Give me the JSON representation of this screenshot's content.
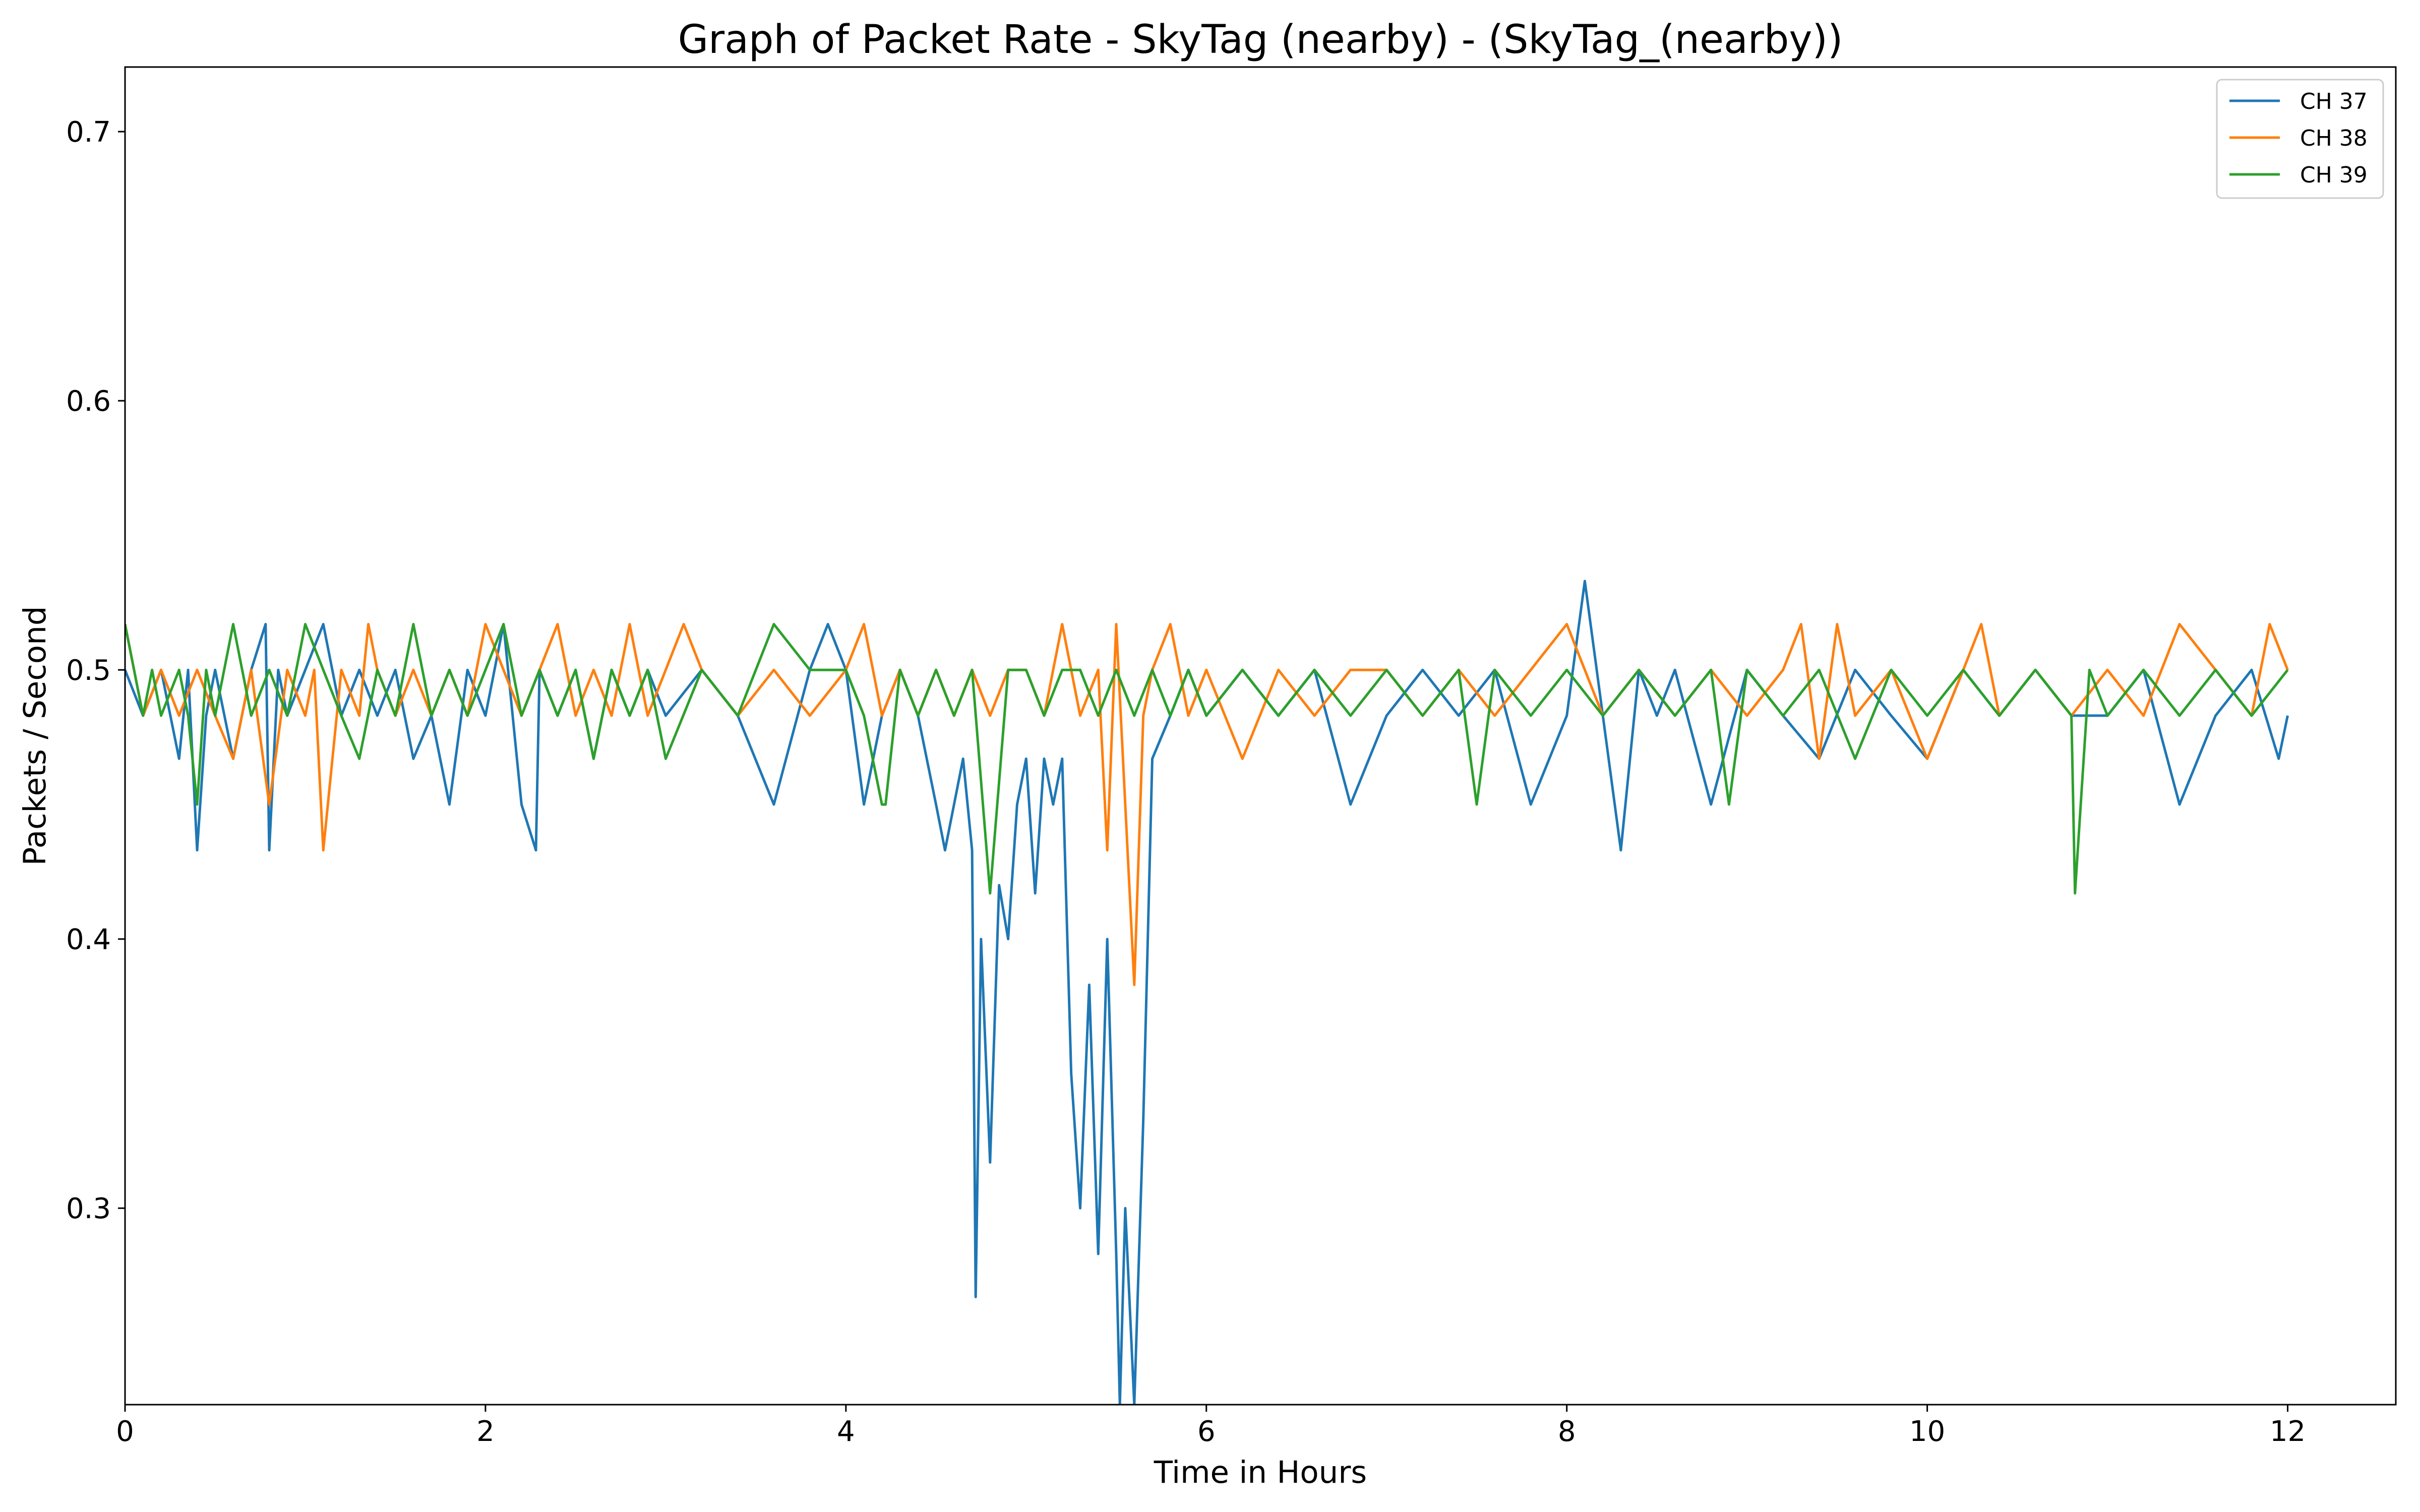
{
  "chart_data": {
    "type": "line",
    "title": "Graph of Packet Rate - SkyTag (nearby) - (SkyTag_(nearby))",
    "xlabel": "Time in Hours",
    "ylabel": "Packets / Second",
    "xlim": [
      0,
      12.6
    ],
    "ylim": [
      0.227,
      0.724
    ],
    "xticks": [
      0,
      2,
      4,
      6,
      8,
      10,
      12
    ],
    "yticks": [
      0.3,
      0.4,
      0.5,
      0.6,
      0.7
    ],
    "xtick_labels": [
      "0",
      "2",
      "4",
      "6",
      "8",
      "10",
      "12"
    ],
    "ytick_labels": [
      "0.3",
      "0.4",
      "0.5",
      "0.6",
      "0.7"
    ],
    "grid": false,
    "legend_position": "top-right",
    "series": [
      {
        "name": "CH 37",
        "color": "#1f77b4",
        "x": [
          0.0,
          0.1,
          0.2,
          0.3,
          0.35,
          0.4,
          0.45,
          0.5,
          0.6,
          0.7,
          0.78,
          0.8,
          0.85,
          0.9,
          1.0,
          1.1,
          1.2,
          1.3,
          1.4,
          1.5,
          1.6,
          1.7,
          1.8,
          1.9,
          2.0,
          2.1,
          2.2,
          2.28,
          2.3,
          2.4,
          2.5,
          2.6,
          2.7,
          2.8,
          2.9,
          3.0,
          3.2,
          3.4,
          3.6,
          3.8,
          3.9,
          4.0,
          4.1,
          4.2,
          4.3,
          4.4,
          4.5,
          4.55,
          4.6,
          4.65,
          4.7,
          4.72,
          4.75,
          4.8,
          4.85,
          4.9,
          4.95,
          5.0,
          5.05,
          5.1,
          5.15,
          5.2,
          5.25,
          5.3,
          5.35,
          5.4,
          5.45,
          5.5,
          5.52,
          5.55,
          5.6,
          5.65,
          5.7,
          5.8,
          5.9,
          6.0,
          6.2,
          6.4,
          6.6,
          6.8,
          7.0,
          7.2,
          7.4,
          7.6,
          7.8,
          8.0,
          8.1,
          8.2,
          8.3,
          8.4,
          8.5,
          8.6,
          8.8,
          9.0,
          9.2,
          9.4,
          9.6,
          9.8,
          10.0,
          10.2,
          10.4,
          10.6,
          10.8,
          11.0,
          11.2,
          11.4,
          11.6,
          11.8,
          11.95,
          12.0
        ],
        "y": [
          0.5,
          0.483,
          0.5,
          0.467,
          0.5,
          0.433,
          0.483,
          0.5,
          0.467,
          0.5,
          0.517,
          0.433,
          0.5,
          0.483,
          0.5,
          0.517,
          0.483,
          0.5,
          0.483,
          0.5,
          0.467,
          0.483,
          0.45,
          0.5,
          0.483,
          0.517,
          0.45,
          0.433,
          0.5,
          0.483,
          0.5,
          0.467,
          0.5,
          0.483,
          0.5,
          0.483,
          0.5,
          0.483,
          0.45,
          0.5,
          0.517,
          0.5,
          0.45,
          0.483,
          0.5,
          0.483,
          0.45,
          0.433,
          0.45,
          0.467,
          0.433,
          0.267,
          0.4,
          0.317,
          0.42,
          0.4,
          0.45,
          0.467,
          0.417,
          0.467,
          0.45,
          0.467,
          0.35,
          0.3,
          0.383,
          0.283,
          0.4,
          0.283,
          0.227,
          0.3,
          0.227,
          0.333,
          0.467,
          0.483,
          0.5,
          0.483,
          0.5,
          0.483,
          0.5,
          0.45,
          0.483,
          0.5,
          0.483,
          0.5,
          0.45,
          0.483,
          0.533,
          0.483,
          0.433,
          0.5,
          0.483,
          0.5,
          0.45,
          0.5,
          0.483,
          0.467,
          0.5,
          0.483,
          0.467,
          0.5,
          0.483,
          0.5,
          0.483,
          0.483,
          0.5,
          0.45,
          0.483,
          0.5,
          0.467,
          0.483
        ]
      },
      {
        "name": "CH 38",
        "color": "#ff7f0e",
        "x": [
          0.0,
          0.1,
          0.2,
          0.3,
          0.4,
          0.5,
          0.6,
          0.7,
          0.8,
          0.9,
          1.0,
          1.05,
          1.1,
          1.2,
          1.3,
          1.35,
          1.4,
          1.5,
          1.6,
          1.7,
          1.8,
          1.9,
          2.0,
          2.1,
          2.2,
          2.3,
          2.4,
          2.5,
          2.6,
          2.7,
          2.8,
          2.9,
          3.0,
          3.1,
          3.2,
          3.4,
          3.6,
          3.8,
          4.0,
          4.1,
          4.15,
          4.2,
          4.3,
          4.4,
          4.5,
          4.6,
          4.7,
          4.8,
          4.9,
          5.0,
          5.1,
          5.2,
          5.3,
          5.4,
          5.45,
          5.5,
          5.55,
          5.6,
          5.65,
          5.7,
          5.8,
          5.9,
          6.0,
          6.2,
          6.4,
          6.6,
          6.8,
          7.0,
          7.2,
          7.4,
          7.6,
          7.8,
          8.0,
          8.2,
          8.4,
          8.6,
          8.8,
          9.0,
          9.2,
          9.3,
          9.4,
          9.5,
          9.6,
          9.8,
          10.0,
          10.2,
          10.3,
          10.4,
          10.6,
          10.8,
          11.0,
          11.2,
          11.4,
          11.6,
          11.8,
          11.9,
          12.0
        ],
        "y": [
          0.517,
          0.483,
          0.5,
          0.483,
          0.5,
          0.483,
          0.467,
          0.5,
          0.45,
          0.5,
          0.483,
          0.5,
          0.433,
          0.5,
          0.483,
          0.517,
          0.5,
          0.483,
          0.5,
          0.483,
          0.5,
          0.483,
          0.517,
          0.5,
          0.483,
          0.5,
          0.517,
          0.483,
          0.5,
          0.483,
          0.517,
          0.483,
          0.5,
          0.517,
          0.5,
          0.483,
          0.5,
          0.483,
          0.5,
          0.517,
          0.5,
          0.483,
          0.5,
          0.483,
          0.5,
          0.483,
          0.5,
          0.483,
          0.5,
          0.5,
          0.483,
          0.517,
          0.483,
          0.5,
          0.433,
          0.517,
          0.45,
          0.383,
          0.483,
          0.5,
          0.517,
          0.483,
          0.5,
          0.467,
          0.5,
          0.483,
          0.5,
          0.5,
          0.483,
          0.5,
          0.483,
          0.5,
          0.517,
          0.483,
          0.5,
          0.483,
          0.5,
          0.483,
          0.5,
          0.517,
          0.467,
          0.517,
          0.483,
          0.5,
          0.467,
          0.5,
          0.517,
          0.483,
          0.5,
          0.483,
          0.5,
          0.483,
          0.517,
          0.5,
          0.483,
          0.517,
          0.5
        ]
      },
      {
        "name": "CH 39",
        "color": "#2ca02c",
        "x": [
          0.0,
          0.05,
          0.1,
          0.15,
          0.2,
          0.3,
          0.35,
          0.4,
          0.45,
          0.5,
          0.55,
          0.6,
          0.7,
          0.8,
          0.9,
          1.0,
          1.1,
          1.2,
          1.3,
          1.4,
          1.5,
          1.6,
          1.7,
          1.8,
          1.9,
          2.0,
          2.1,
          2.2,
          2.3,
          2.4,
          2.5,
          2.6,
          2.7,
          2.8,
          2.9,
          3.0,
          3.2,
          3.4,
          3.6,
          3.8,
          4.0,
          4.1,
          4.2,
          4.22,
          4.3,
          4.4,
          4.5,
          4.6,
          4.7,
          4.8,
          4.9,
          5.0,
          5.1,
          5.2,
          5.3,
          5.4,
          5.5,
          5.6,
          5.7,
          5.8,
          5.9,
          6.0,
          6.2,
          6.4,
          6.6,
          6.8,
          7.0,
          7.2,
          7.4,
          7.5,
          7.6,
          7.8,
          8.0,
          8.2,
          8.4,
          8.6,
          8.8,
          8.9,
          9.0,
          9.2,
          9.4,
          9.6,
          9.8,
          10.0,
          10.2,
          10.4,
          10.6,
          10.8,
          10.82,
          10.9,
          11.0,
          11.2,
          11.4,
          11.6,
          11.8,
          12.0
        ],
        "y": [
          0.517,
          0.5,
          0.483,
          0.5,
          0.483,
          0.5,
          0.483,
          0.45,
          0.5,
          0.483,
          0.5,
          0.517,
          0.483,
          0.5,
          0.483,
          0.517,
          0.5,
          0.483,
          0.467,
          0.5,
          0.483,
          0.517,
          0.483,
          0.5,
          0.483,
          0.5,
          0.517,
          0.483,
          0.5,
          0.483,
          0.5,
          0.467,
          0.5,
          0.483,
          0.5,
          0.467,
          0.5,
          0.483,
          0.517,
          0.5,
          0.5,
          0.483,
          0.45,
          0.45,
          0.5,
          0.483,
          0.5,
          0.483,
          0.5,
          0.417,
          0.5,
          0.5,
          0.483,
          0.5,
          0.5,
          0.483,
          0.5,
          0.483,
          0.5,
          0.483,
          0.5,
          0.483,
          0.5,
          0.483,
          0.5,
          0.483,
          0.5,
          0.483,
          0.5,
          0.45,
          0.5,
          0.483,
          0.5,
          0.483,
          0.5,
          0.483,
          0.5,
          0.45,
          0.5,
          0.483,
          0.5,
          0.467,
          0.5,
          0.483,
          0.5,
          0.483,
          0.5,
          0.483,
          0.417,
          0.5,
          0.483,
          0.5,
          0.483,
          0.5,
          0.483,
          0.5
        ]
      }
    ]
  }
}
